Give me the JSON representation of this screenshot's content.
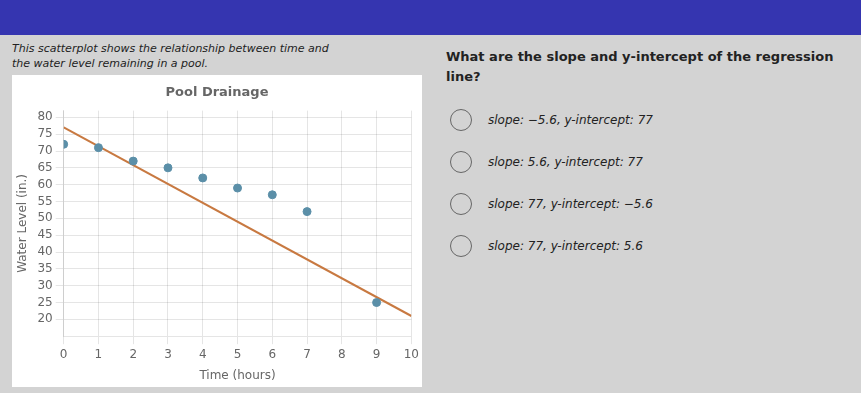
{
  "chart_data": {
    "type": "scatter",
    "title": "Pool Drainage",
    "xlabel": "Time (hours)",
    "ylabel": "Water Level (in.)",
    "series": [
      {
        "type": "scatter",
        "color": "#5b8fa8",
        "x": [
          0,
          1,
          2,
          3,
          4,
          5,
          6,
          7,
          9
        ],
        "values": [
          72,
          71,
          67,
          65,
          62,
          59,
          57,
          52,
          25
        ]
      },
      {
        "type": "line",
        "color": "#c87941",
        "x": [
          0,
          10
        ],
        "values": [
          77,
          21
        ]
      }
    ],
    "xlim": [
      0,
      10
    ],
    "xticks": [
      0,
      1,
      2,
      3,
      4,
      5,
      6,
      7,
      8,
      9,
      10
    ],
    "ylim": [
      15,
      82
    ],
    "yticks": [
      20,
      25,
      30,
      35,
      40,
      45,
      50,
      55,
      60,
      65,
      70,
      75,
      80
    ],
    "grid": true,
    "subtitle": [
      "This scatterplot shows the relationship between time and",
      "the water level remaining in a pool."
    ],
    "annotations": [
      "What are the slope and y-intercept of the regression\nline?",
      "slope: −5.6, y-intercept: 77",
      "slope: 5.6, y-intercept: 77",
      "slope: 77, y-intercept: −5.6",
      "slope: 77, y-intercept: 5.6"
    ]
  }
}
